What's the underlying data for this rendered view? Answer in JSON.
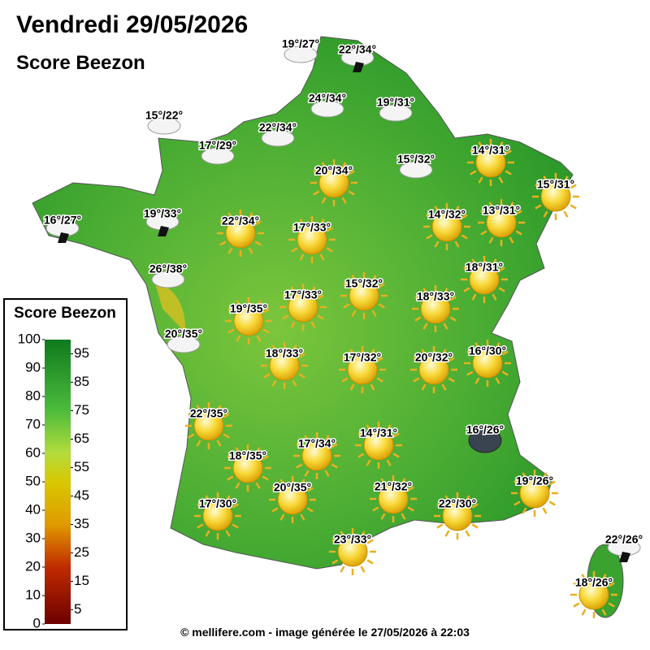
{
  "header": {
    "title": "Vendredi 29/05/2026",
    "subtitle": "Score Beezon"
  },
  "stations": [
    {
      "label": "19°/27°",
      "icon": "cloud"
    },
    {
      "label": "22°/34°",
      "icon": "rain"
    },
    {
      "label": "24°/34°",
      "icon": "cloud"
    },
    {
      "label": "19°/31°",
      "icon": "cloud"
    },
    {
      "label": "15°/22°",
      "icon": "cloud"
    },
    {
      "label": "22°/34°",
      "icon": "cloud"
    },
    {
      "label": "17°/29°",
      "icon": "cloud"
    },
    {
      "label": "15°/32°",
      "icon": "cloud"
    },
    {
      "label": "14°/31°",
      "icon": "sun"
    },
    {
      "label": "20°/34°",
      "icon": "sun"
    },
    {
      "label": "15°/31°",
      "icon": "sun"
    },
    {
      "label": "16°/27°",
      "icon": "rain"
    },
    {
      "label": "19°/33°",
      "icon": "rain"
    },
    {
      "label": "22°/34°",
      "icon": "sun"
    },
    {
      "label": "17°/33°",
      "icon": "sun"
    },
    {
      "label": "14°/32°",
      "icon": "sun"
    },
    {
      "label": "13°/31°",
      "icon": "sun"
    },
    {
      "label": "26°/38°",
      "icon": "cloud"
    },
    {
      "label": "18°/31°",
      "icon": "sun"
    },
    {
      "label": "15°/32°",
      "icon": "sun"
    },
    {
      "label": "17°/33°",
      "icon": "sun"
    },
    {
      "label": "18°/33°",
      "icon": "sun"
    },
    {
      "label": "19°/35°",
      "icon": "sun"
    },
    {
      "label": "20°/35°",
      "icon": "cloud"
    },
    {
      "label": "18°/33°",
      "icon": "sun"
    },
    {
      "label": "17°/32°",
      "icon": "sun"
    },
    {
      "label": "20°/32°",
      "icon": "sun"
    },
    {
      "label": "16°/30°",
      "icon": "sun"
    },
    {
      "label": "22°/35°",
      "icon": "sun"
    },
    {
      "label": "16°/26°",
      "icon": "storm"
    },
    {
      "label": "14°/31°",
      "icon": "sun"
    },
    {
      "label": "17°/34°",
      "icon": "sun"
    },
    {
      "label": "18°/35°",
      "icon": "sun"
    },
    {
      "label": "19°/26°",
      "icon": "sun"
    },
    {
      "label": "20°/35°",
      "icon": "sun"
    },
    {
      "label": "21°/32°",
      "icon": "sun"
    },
    {
      "label": "17°/30°",
      "icon": "sun"
    },
    {
      "label": "22°/30°",
      "icon": "sun"
    },
    {
      "label": "23°/33°",
      "icon": "sun"
    },
    {
      "label": "22°/26°",
      "icon": "rain"
    },
    {
      "label": "18°/26°",
      "icon": "sun"
    }
  ],
  "legend": {
    "title": "Score Beezon",
    "left_ticks": [
      100,
      90,
      80,
      70,
      60,
      50,
      40,
      30,
      20,
      10,
      0
    ],
    "right_ticks": [
      95,
      85,
      75,
      65,
      55,
      45,
      35,
      25,
      15,
      5
    ]
  },
  "footer": "© mellifere.com - image générée le 27/05/2026 à 22:03"
}
